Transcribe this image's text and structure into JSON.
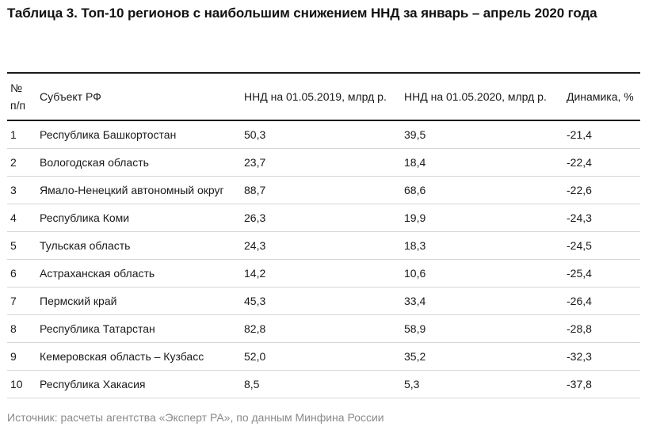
{
  "title": "Таблица 3. Топ-10 регионов с наибольшим снижением ННД за январь – апрель 2020 года",
  "table": {
    "headers": {
      "num_line1": "№",
      "num_line2": "п/п",
      "region": "Субъект РФ",
      "v2019": "ННД на 01.05.2019, млрд р.",
      "v2020": "ННД на 01.05.2020, млрд р.",
      "dynamics": "Динамика, %"
    },
    "rows": [
      {
        "num": "1",
        "region": "Республика Башкортостан",
        "v2019": "50,3",
        "v2020": "39,5",
        "dynamics": "-21,4"
      },
      {
        "num": "2",
        "region": "Вологодская область",
        "v2019": "23,7",
        "v2020": "18,4",
        "dynamics": "-22,4"
      },
      {
        "num": "3",
        "region": "Ямало-Ненецкий автономный округ",
        "v2019": "88,7",
        "v2020": "68,6",
        "dynamics": "-22,6"
      },
      {
        "num": "4",
        "region": "Республика Коми",
        "v2019": "26,3",
        "v2020": "19,9",
        "dynamics": "-24,3"
      },
      {
        "num": "5",
        "region": "Тульская область",
        "v2019": "24,3",
        "v2020": "18,3",
        "dynamics": "-24,5"
      },
      {
        "num": "6",
        "region": "Астраханская область",
        "v2019": "14,2",
        "v2020": "10,6",
        "dynamics": "-25,4"
      },
      {
        "num": "7",
        "region": "Пермский край",
        "v2019": "45,3",
        "v2020": "33,4",
        "dynamics": "-26,4"
      },
      {
        "num": "8",
        "region": "Республика Татарстан",
        "v2019": "82,8",
        "v2020": "58,9",
        "dynamics": "-28,8"
      },
      {
        "num": "9",
        "region": "Кемеровская область – Кузбасс",
        "v2019": "52,0",
        "v2020": "35,2",
        "dynamics": "-32,3"
      },
      {
        "num": "10",
        "region": "Республика Хакасия",
        "v2019": "8,5",
        "v2020": "5,3",
        "dynamics": "-37,8"
      }
    ]
  },
  "source": "Источник: расчеты агентства «Эксперт РА», по данным Минфина России",
  "colors": {
    "text": "#1a1a1a",
    "rule": "#1a1a1a",
    "row_divider": "#d6d6d6",
    "source_text": "#8a8a8a"
  }
}
